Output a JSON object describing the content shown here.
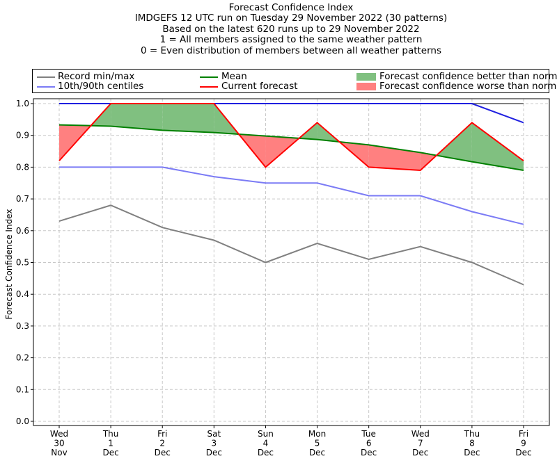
{
  "title_lines": [
    "Forecast Confidence Index",
    "IMDGEFS 12 UTC run on Tuesday 29 November 2022 (30 patterns)",
    "Based on the latest 620 runs up to 29 November 2022",
    "1 = All members assigned to the same weather pattern",
    "0 = Even distribution of members between all weather patterns"
  ],
  "legend": {
    "record": "Record min/max",
    "centiles": "10th/90th centiles",
    "mean": "Mean",
    "current": "Current forecast",
    "better": "Forecast confidence better than normal",
    "worse": "Forecast confidence worse than normal"
  },
  "colors": {
    "record": "#808080",
    "centiles": "#7b7bf5",
    "max_line": "#2020e0",
    "mean": "#008000",
    "current": "#ff0000",
    "better": "#80c080",
    "worse": "#ff8080"
  },
  "chart_data": {
    "type": "line",
    "title": "Forecast Confidence Index",
    "ylabel": "Forecast Confidence Index",
    "xlabel": "",
    "ylim": [
      0.0,
      1.0
    ],
    "grid": true,
    "legend_position": "top",
    "yticks": [
      "0.0",
      "0.1",
      "0.2",
      "0.3",
      "0.4",
      "0.5",
      "0.6",
      "0.7",
      "0.8",
      "0.9",
      "1.0"
    ],
    "categories": [
      [
        "Wed",
        "30",
        "Nov"
      ],
      [
        "Thu",
        "1",
        "Dec"
      ],
      [
        "Fri",
        "2",
        "Dec"
      ],
      [
        "Sat",
        "3",
        "Dec"
      ],
      [
        "Sun",
        "4",
        "Dec"
      ],
      [
        "Mon",
        "5",
        "Dec"
      ],
      [
        "Tue",
        "6",
        "Dec"
      ],
      [
        "Wed",
        "7",
        "Dec"
      ],
      [
        "Thu",
        "8",
        "Dec"
      ],
      [
        "Fri",
        "9",
        "Dec"
      ]
    ],
    "series": [
      {
        "name": "Record min/max",
        "role": "record_min",
        "values": [
          0.63,
          0.68,
          0.61,
          0.57,
          0.5,
          0.56,
          0.51,
          0.55,
          0.5,
          0.43
        ]
      },
      {
        "name": "Record min/max",
        "role": "record_max",
        "values": [
          1.0,
          1.0,
          1.0,
          1.0,
          1.0,
          1.0,
          1.0,
          1.0,
          1.0,
          1.0
        ]
      },
      {
        "name": "10th/90th centiles",
        "role": "p10",
        "values": [
          0.8,
          0.8,
          0.8,
          0.77,
          0.75,
          0.75,
          0.71,
          0.71,
          0.66,
          0.62
        ]
      },
      {
        "name": "10th/90th centiles",
        "role": "p90",
        "values": [
          1.0,
          1.0,
          1.0,
          1.0,
          1.0,
          1.0,
          1.0,
          1.0,
          1.0,
          0.94
        ]
      },
      {
        "name": "Mean",
        "role": "mean",
        "values": [
          0.933,
          0.929,
          0.916,
          0.909,
          0.898,
          0.887,
          0.87,
          0.846,
          0.817,
          0.79
        ]
      },
      {
        "name": "Current forecast",
        "role": "current",
        "values": [
          0.82,
          1.0,
          1.0,
          1.0,
          0.8,
          0.94,
          0.8,
          0.79,
          0.94,
          0.82
        ]
      }
    ]
  }
}
